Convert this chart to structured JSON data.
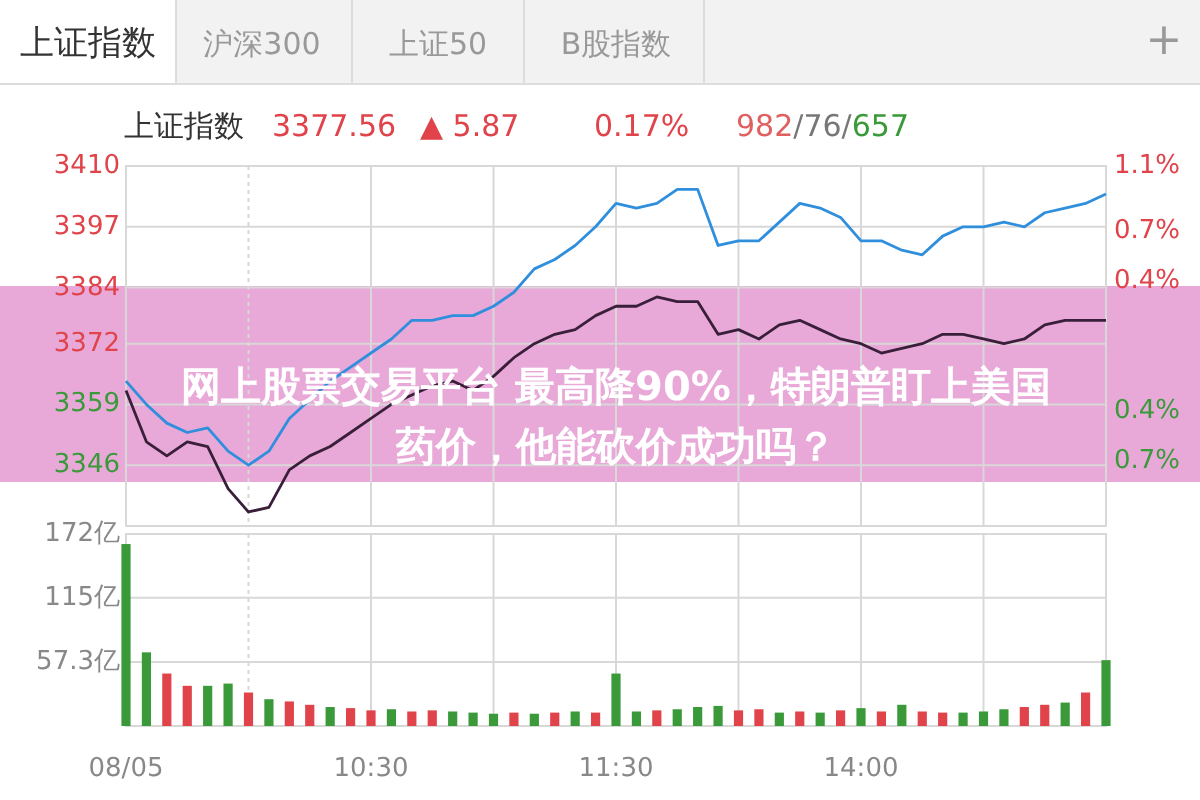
{
  "chart_data": [
    {
      "type": "line",
      "title": "网上股票交易平台 最高降90%，特朗普盯上美国药价，他能砍价成功吗？",
      "annotations": [
        "上证指数",
        "沪深300",
        "上证50",
        "B股指数",
        "+",
        "上证指数",
        "3377.56",
        "▲ 5.87",
        "0.17%",
        "982/76/657"
      ],
      "categories": [
        null,
        null,
        null,
        null,
        null,
        null,
        null,
        null,
        null,
        null,
        null,
        null,
        null,
        null,
        null,
        null,
        null,
        null,
        null,
        null,
        null,
        null,
        null,
        null,
        null,
        null,
        null,
        null,
        null,
        null,
        null,
        null,
        null,
        null,
        null,
        null,
        null,
        null,
        null,
        null,
        null,
        null,
        null,
        null,
        null,
        null,
        null,
        null,
        null
      ],
      "series": [
        {
          "color": "#2f8fdd",
          "values": [
            3364,
            3359,
            3355,
            3353,
            3354,
            3349,
            3346,
            3349,
            3356,
            3360,
            3364,
            3367,
            3370,
            3373,
            3377,
            3377,
            3378,
            3378,
            3380,
            3383,
            3388,
            3390,
            3393,
            3397,
            3402,
            3401,
            3402,
            3405,
            3405,
            3393,
            3394,
            3394,
            3398,
            3402,
            3401,
            3399,
            3394,
            3394,
            3392,
            3391,
            3395,
            3397,
            3397,
            3398,
            3397,
            3400,
            3401,
            3402,
            3404
          ]
        },
        {
          "color": "#3a1f3a",
          "values": [
            3362,
            3351,
            3348,
            3351,
            3350,
            3341,
            3336,
            3337,
            3345,
            3348,
            3350,
            3353,
            3356,
            3359,
            3361,
            3363,
            3364,
            3362,
            3365,
            3369,
            3372,
            3374,
            3375,
            3378,
            3380,
            3380,
            3382,
            3381,
            3381,
            3374,
            3375,
            3373,
            3376,
            3377,
            3375,
            3373,
            3372,
            3370,
            3371,
            3372,
            3374,
            3374,
            3373,
            3372,
            3373,
            3376,
            3377,
            3377,
            3377
          ]
        }
      ],
      "ylim": [
        3333,
        3410
      ],
      "yticks": [
        3410,
        3397,
        3384,
        3372,
        3359,
        3346
      ],
      "y2lim": [
        -1.1,
        1.1
      ],
      "y2ticks": [
        {
          "value": 1.1,
          "label": "1.1%"
        },
        {
          "value": 0.7,
          "label": "0.7%"
        },
        {
          "value": 0.4,
          "label": "0.4%"
        },
        {
          "value": -0.4,
          "label": "0.4%"
        },
        {
          "value": -0.7,
          "label": "0.7%"
        }
      ],
      "grid": true,
      "tick_labels": "y"
    },
    {
      "type": "bar",
      "categories": [
        "08/05",
        null,
        null,
        null,
        null,
        null,
        null,
        null,
        null,
        null,
        null,
        null,
        "10:30",
        null,
        null,
        null,
        null,
        null,
        null,
        null,
        null,
        null,
        null,
        null,
        "11:30",
        null,
        null,
        null,
        null,
        null,
        null,
        null,
        null,
        null,
        null,
        null,
        "14:00",
        null,
        null,
        null,
        null,
        null,
        null,
        null,
        null,
        null,
        null,
        null,
        null
      ],
      "values": [
        163,
        66,
        47,
        36,
        36,
        38,
        30,
        24,
        22,
        19,
        17,
        16,
        14,
        15,
        13,
        14,
        13,
        12,
        11,
        12,
        11,
        12,
        13,
        12,
        47,
        13,
        14,
        15,
        17,
        18,
        14,
        15,
        12,
        13,
        12,
        14,
        16,
        13,
        19,
        13,
        12,
        12,
        13,
        15,
        17,
        19,
        21,
        30,
        59
      ],
      "colors": [
        "#3a9a3a",
        "#3a9a3a",
        "#e0434a",
        "#e0434a",
        "#3a9a3a",
        "#3a9a3a",
        "#e0434a",
        "#3a9a3a",
        "#e0434a",
        "#e0434a",
        "#3a9a3a",
        "#e0434a",
        "#e0434a",
        "#3a9a3a",
        "#e0434a",
        "#e0434a",
        "#3a9a3a",
        "#3a9a3a",
        "#3a9a3a",
        "#e0434a",
        "#3a9a3a",
        "#e0434a",
        "#3a9a3a",
        "#e0434a",
        "#3a9a3a",
        "#3a9a3a",
        "#e0434a",
        "#3a9a3a",
        "#3a9a3a",
        "#3a9a3a",
        "#e0434a",
        "#e0434a",
        "#3a9a3a",
        "#e0434a",
        "#3a9a3a",
        "#e0434a",
        "#3a9a3a",
        "#e0434a",
        "#3a9a3a",
        "#e0434a",
        "#e0434a",
        "#3a9a3a",
        "#3a9a3a",
        "#3a9a3a",
        "#e0434a",
        "#e0434a",
        "#3a9a3a",
        "#e0434a",
        "#3a9a3a"
      ],
      "ylim": [
        0,
        172
      ],
      "yticks": [
        {
          "value": 57.3,
          "label": "57.3亿"
        },
        {
          "value": 115,
          "label": "115亿"
        },
        {
          "value": 172,
          "label": "172亿"
        }
      ],
      "grid": true
    }
  ]
}
